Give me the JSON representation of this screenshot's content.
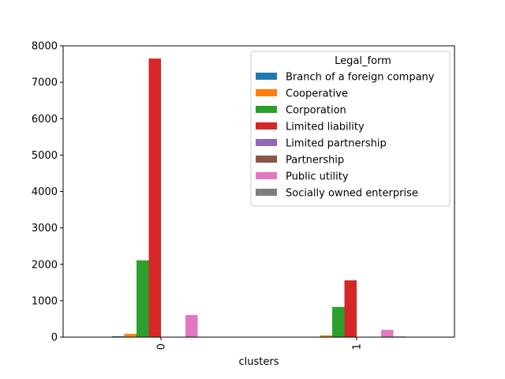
{
  "chart_data": {
    "type": "bar",
    "title": "",
    "xlabel": "clusters",
    "ylabel": "",
    "categories": [
      "0",
      "1"
    ],
    "ylim": [
      0,
      8000
    ],
    "yticks": [
      0,
      1000,
      2000,
      3000,
      4000,
      5000,
      6000,
      7000,
      8000
    ],
    "grid": false,
    "legend": {
      "title": "Legal_form",
      "position": "top-right"
    },
    "series": [
      {
        "name": "Branch of a foreign company",
        "color": "#1f77b4",
        "values": [
          25,
          5
        ]
      },
      {
        "name": "Cooperative",
        "color": "#ff7f0e",
        "values": [
          90,
          50
        ]
      },
      {
        "name": "Corporation",
        "color": "#2ca02c",
        "values": [
          2110,
          830
        ]
      },
      {
        "name": "Limited liability",
        "color": "#d62728",
        "values": [
          7650,
          1560
        ]
      },
      {
        "name": "Limited partnership",
        "color": "#9467bd",
        "values": [
          3,
          2
        ]
      },
      {
        "name": "Partnership",
        "color": "#8c564b",
        "values": [
          6,
          4
        ]
      },
      {
        "name": "Public utility",
        "color": "#e377c2",
        "values": [
          610,
          200
        ]
      },
      {
        "name": "Socially owned enterprise",
        "color": "#7f7f7f",
        "values": [
          12,
          18
        ]
      }
    ]
  }
}
